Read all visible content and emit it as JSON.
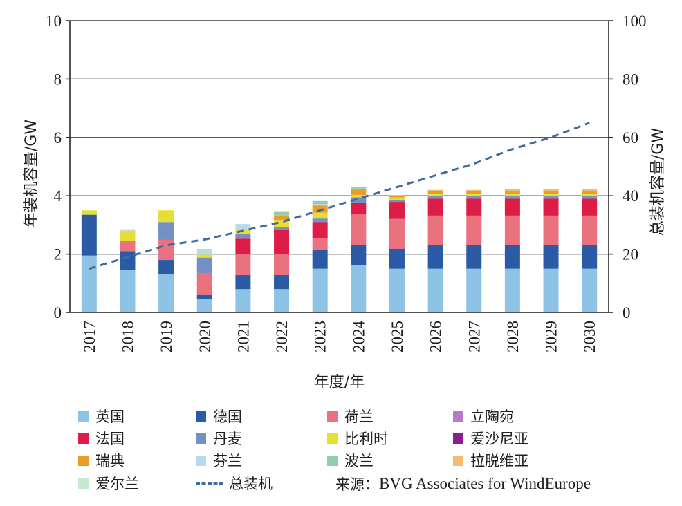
{
  "chart_data": {
    "type": "bar",
    "stacked": true,
    "categories": [
      "2017",
      "2018",
      "2019",
      "2020",
      "2021",
      "2022",
      "2023",
      "2024",
      "2025",
      "2026",
      "2027",
      "2028",
      "2029",
      "2030"
    ],
    "xlabel": "年度/年",
    "ylabel": "年装机容量/GW",
    "y2label": "总装机容量/GW",
    "ylim": [
      0,
      10
    ],
    "y2lim": [
      0,
      100
    ],
    "yticks": [
      "0",
      "2",
      "4",
      "6",
      "8",
      "10"
    ],
    "y2ticks": [
      "0",
      "20",
      "40",
      "60",
      "80",
      "100"
    ],
    "grid": true,
    "series": [
      {
        "name": "英国",
        "color": "#8fc3e6",
        "values": [
          1.95,
          1.45,
          1.3,
          0.45,
          0.8,
          0.8,
          1.5,
          1.62,
          1.5,
          1.5,
          1.5,
          1.5,
          1.5,
          1.5
        ]
      },
      {
        "name": "德国",
        "color": "#2b5ba4",
        "values": [
          1.4,
          0.65,
          0.5,
          0.15,
          0.48,
          0.48,
          0.65,
          0.7,
          0.68,
          0.82,
          0.82,
          0.82,
          0.82,
          0.82
        ]
      },
      {
        "name": "荷兰",
        "color": "#ea717e",
        "values": [
          0,
          0.35,
          0.7,
          0.73,
          0.72,
          0.72,
          0.4,
          1.05,
          1.03,
          1.0,
          1.0,
          1.0,
          1.0,
          1.0
        ]
      },
      {
        "name": "立陶宛",
        "color": "#b47cc4",
        "values": [
          0,
          0,
          0,
          0,
          0,
          0,
          0,
          0,
          0,
          0,
          0,
          0,
          0,
          0
        ]
      },
      {
        "name": "法国",
        "color": "#de1c48",
        "values": [
          0,
          0,
          0,
          0,
          0.53,
          0.82,
          0.55,
          0.38,
          0.58,
          0.58,
          0.58,
          0.58,
          0.58,
          0.58
        ]
      },
      {
        "name": "丹麦",
        "color": "#7291c4",
        "values": [
          0,
          0,
          0.6,
          0.55,
          0.15,
          0.1,
          0.12,
          0.2,
          0.05,
          0.08,
          0.08,
          0.08,
          0.08,
          0.08
        ]
      },
      {
        "name": "比利时",
        "color": "#e4df31",
        "values": [
          0.15,
          0.35,
          0.4,
          0.1,
          0.15,
          0.25,
          0.2,
          0.08,
          0.1,
          0.08,
          0.08,
          0.08,
          0.08,
          0.08
        ]
      },
      {
        "name": "爱沙尼亚",
        "color": "#8c1f8f",
        "values": [
          0,
          0,
          0,
          0,
          0,
          0,
          0,
          0,
          0,
          0,
          0,
          0,
          0,
          0
        ]
      },
      {
        "name": "瑞典",
        "color": "#ec9c27",
        "values": [
          0,
          0,
          0,
          0,
          0,
          0.15,
          0.25,
          0.2,
          0.05,
          0.1,
          0.1,
          0.1,
          0.1,
          0.1
        ]
      },
      {
        "name": "芬兰",
        "color": "#b8d8ec",
        "values": [
          0,
          0.03,
          0,
          0.2,
          0.2,
          0,
          0.05,
          0.02,
          0.02,
          0,
          0,
          0,
          0,
          0
        ]
      },
      {
        "name": "波兰",
        "color": "#92cfa9",
        "values": [
          0,
          0,
          0,
          0,
          0,
          0.15,
          0.1,
          0.05,
          0,
          0,
          0,
          0,
          0,
          0
        ]
      },
      {
        "name": "拉脱维亚",
        "color": "#f3bb71",
        "values": [
          0,
          0,
          0,
          0,
          0,
          0,
          0,
          0,
          0,
          0.04,
          0.04,
          0.06,
          0.06,
          0.06
        ]
      },
      {
        "name": "爱尔兰",
        "color": "#c8e7d2",
        "values": [
          0,
          0,
          0,
          0,
          0,
          0,
          0,
          0,
          0,
          0,
          0,
          0,
          0,
          0
        ]
      }
    ],
    "line_series": {
      "name": "总装机",
      "axis": "right",
      "color": "#3e6aa0",
      "style": "dashed",
      "values": [
        15,
        19,
        23,
        25,
        28,
        31,
        35,
        39,
        43,
        47,
        51,
        56,
        60,
        65
      ]
    }
  },
  "source_label": "来源：",
  "source_value": "BVG Associates for WindEurope"
}
